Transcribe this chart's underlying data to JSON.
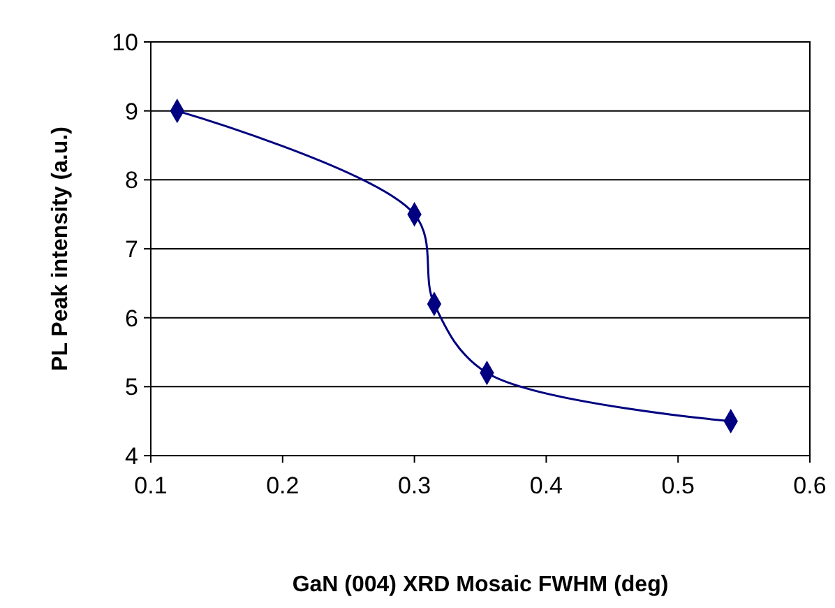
{
  "chart_data": {
    "type": "line",
    "xlabel": "GaN (004) XRD Mosaic FWHM (deg)",
    "ylabel": "PL Peak intensity (a.u.)",
    "x": [
      0.12,
      0.3,
      0.315,
      0.355,
      0.54
    ],
    "series": [
      {
        "color": "#000080",
        "values": [
          9.0,
          7.5,
          6.2,
          5.2,
          4.5
        ]
      }
    ],
    "xlim": [
      0.1,
      0.6
    ],
    "xticks": [
      0.1,
      0.2,
      0.3,
      0.4,
      0.5,
      0.6
    ],
    "ylim": [
      4,
      10
    ],
    "yticks": [
      4,
      5,
      6,
      7,
      8,
      9,
      10
    ],
    "grid": "y",
    "marker": "diamond",
    "line_style": "solid"
  }
}
